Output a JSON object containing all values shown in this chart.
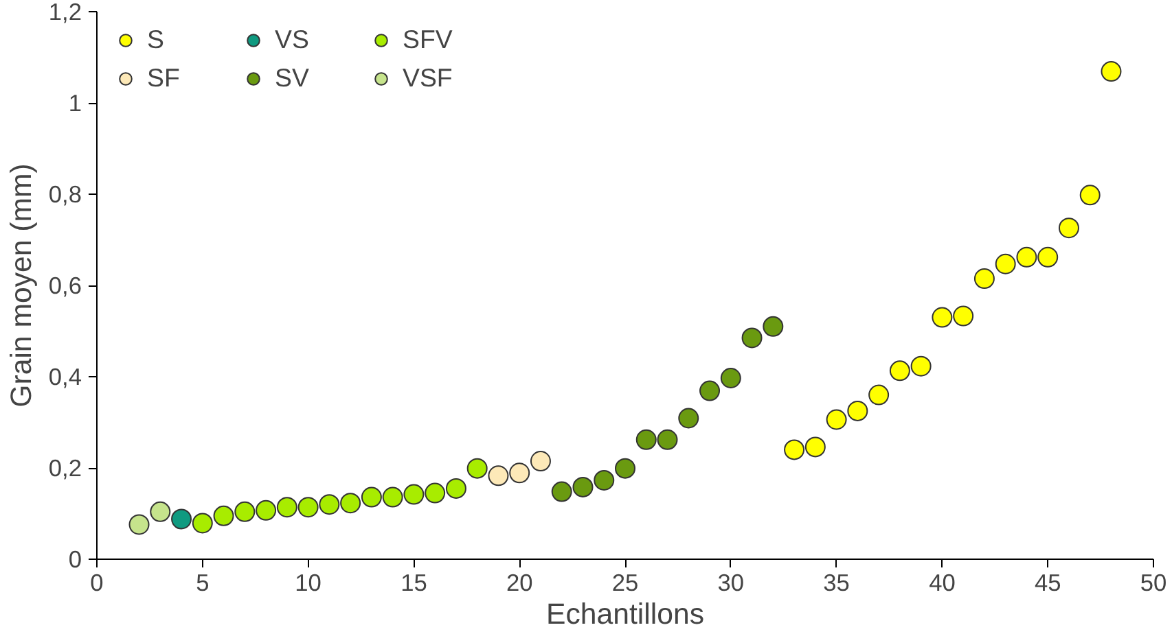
{
  "chart_data": {
    "type": "scatter",
    "xlabel": "Echantillons",
    "ylabel": "Grain moyen (mm)",
    "xlim": [
      0,
      50
    ],
    "xticks": [
      0,
      5,
      10,
      15,
      20,
      25,
      30,
      35,
      40,
      45,
      50
    ],
    "ylim": [
      0,
      1.2
    ],
    "yticks": [
      0,
      {
        "value": 0.2,
        "label": "0,2"
      },
      {
        "value": 0.4,
        "label": "0,4"
      },
      {
        "value": 0.6,
        "label": "0,6"
      },
      {
        "value": 0.8,
        "label": "0,8"
      },
      1,
      {
        "value": 1.2,
        "label": "1,2"
      }
    ],
    "grid": false,
    "legend": "top left",
    "marker": "circle",
    "series": [
      {
        "name": "S",
        "color": "#ffff00",
        "x": [
          33,
          34,
          35,
          36,
          37,
          38,
          39,
          40,
          41,
          42,
          43,
          44,
          45,
          46,
          47,
          48
        ],
        "values": [
          0.24,
          0.246,
          0.306,
          0.325,
          0.36,
          0.413,
          0.423,
          0.53,
          0.533,
          0.615,
          0.647,
          0.662,
          0.662,
          0.726,
          0.798,
          1.069
        ]
      },
      {
        "name": "SF",
        "color": "#fde9b8",
        "x": [
          19,
          20,
          21
        ],
        "values": [
          0.183,
          0.189,
          0.215
        ]
      },
      {
        "name": "VS",
        "color": "#0f9a80",
        "x": [
          4
        ],
        "values": [
          0.088
        ]
      },
      {
        "name": "SV",
        "color": "#6a9a10",
        "x": [
          22,
          23,
          24,
          25,
          26,
          27,
          28,
          29,
          30,
          31,
          32
        ],
        "values": [
          0.148,
          0.158,
          0.173,
          0.199,
          0.262,
          0.262,
          0.309,
          0.369,
          0.397,
          0.485,
          0.51
        ]
      },
      {
        "name": "SFV",
        "color": "#a8ec00",
        "x": [
          5,
          6,
          7,
          8,
          9,
          10,
          11,
          12,
          13,
          14,
          15,
          16,
          17,
          18
        ],
        "values": [
          0.079,
          0.095,
          0.104,
          0.107,
          0.114,
          0.114,
          0.12,
          0.123,
          0.136,
          0.136,
          0.142,
          0.145,
          0.155,
          0.199
        ]
      },
      {
        "name": "VSF",
        "color": "#c6e48c",
        "x": [
          2,
          3
        ],
        "values": [
          0.076,
          0.104
        ]
      }
    ]
  }
}
